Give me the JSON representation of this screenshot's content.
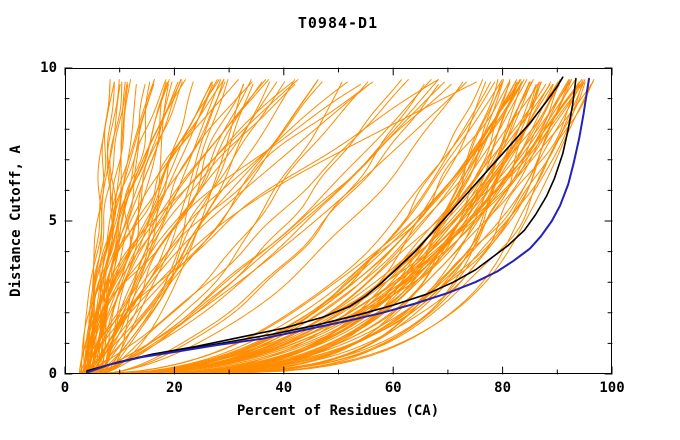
{
  "chart_data": {
    "type": "line",
    "title": "T0984-D1",
    "xlabel": "Percent of Residues (CA)",
    "ylabel": "Distance Cutoff, A",
    "xlim": [
      0,
      100
    ],
    "ylim": [
      0,
      10
    ],
    "x_major_ticks": [
      0,
      20,
      40,
      60,
      80,
      100
    ],
    "x_minor_step": 10,
    "y_major_ticks": [
      0,
      5,
      10
    ],
    "y_minor_step": 1,
    "grid": false,
    "legend_position": "none",
    "colors": {
      "ensemble": "#FF8C00",
      "highlight": "#2222BB",
      "reference": "#000000",
      "frame": "#000000",
      "text": "#000000",
      "background": "#FFFFFF"
    },
    "series": [
      {
        "name": "reference-model-black-1",
        "color": "#000000",
        "width": 1.6,
        "points": [
          [
            4,
            0.1
          ],
          [
            10,
            0.4
          ],
          [
            16,
            0.65
          ],
          [
            24,
            0.9
          ],
          [
            32,
            1.2
          ],
          [
            40,
            1.5
          ],
          [
            47,
            1.85
          ],
          [
            52,
            2.2
          ],
          [
            55,
            2.55
          ],
          [
            58,
            3.0
          ],
          [
            61,
            3.5
          ],
          [
            64,
            4.0
          ],
          [
            67,
            4.6
          ],
          [
            70,
            5.2
          ],
          [
            73,
            5.8
          ],
          [
            76,
            6.4
          ],
          [
            79,
            7.0
          ],
          [
            82,
            7.6
          ],
          [
            85,
            8.2
          ],
          [
            88,
            8.9
          ],
          [
            90,
            9.4
          ],
          [
            91,
            9.7
          ]
        ]
      },
      {
        "name": "reference-model-black-2",
        "color": "#000000",
        "width": 1.6,
        "points": [
          [
            4,
            0.08
          ],
          [
            9,
            0.35
          ],
          [
            15,
            0.6
          ],
          [
            22,
            0.8
          ],
          [
            30,
            1.05
          ],
          [
            38,
            1.3
          ],
          [
            46,
            1.6
          ],
          [
            54,
            1.95
          ],
          [
            60,
            2.25
          ],
          [
            66,
            2.6
          ],
          [
            71,
            3.0
          ],
          [
            75,
            3.4
          ],
          [
            78,
            3.8
          ],
          [
            81,
            4.2
          ],
          [
            84,
            4.7
          ],
          [
            86,
            5.2
          ],
          [
            88,
            5.8
          ],
          [
            89.5,
            6.4
          ],
          [
            91,
            7.2
          ],
          [
            92,
            8.0
          ],
          [
            92.8,
            8.8
          ],
          [
            93.4,
            9.65
          ]
        ]
      },
      {
        "name": "highlighted-model-blue",
        "color": "#2222BB",
        "width": 2.0,
        "points": [
          [
            4,
            0.05
          ],
          [
            8,
            0.3
          ],
          [
            14,
            0.55
          ],
          [
            20,
            0.72
          ],
          [
            28,
            0.95
          ],
          [
            36,
            1.15
          ],
          [
            44,
            1.45
          ],
          [
            52,
            1.75
          ],
          [
            58,
            2.0
          ],
          [
            64,
            2.3
          ],
          [
            70,
            2.65
          ],
          [
            75,
            3.0
          ],
          [
            79,
            3.35
          ],
          [
            82,
            3.7
          ],
          [
            85,
            4.1
          ],
          [
            87,
            4.5
          ],
          [
            89,
            5.0
          ],
          [
            90.5,
            5.5
          ],
          [
            92,
            6.2
          ],
          [
            93,
            6.9
          ],
          [
            94,
            7.7
          ],
          [
            94.8,
            8.5
          ],
          [
            95.4,
            9.2
          ],
          [
            95.8,
            9.65
          ]
        ]
      }
    ],
    "ensemble": {
      "name": "model-pool-curves",
      "color": "#FF8C00",
      "count": 140,
      "seed": 20984
    }
  }
}
